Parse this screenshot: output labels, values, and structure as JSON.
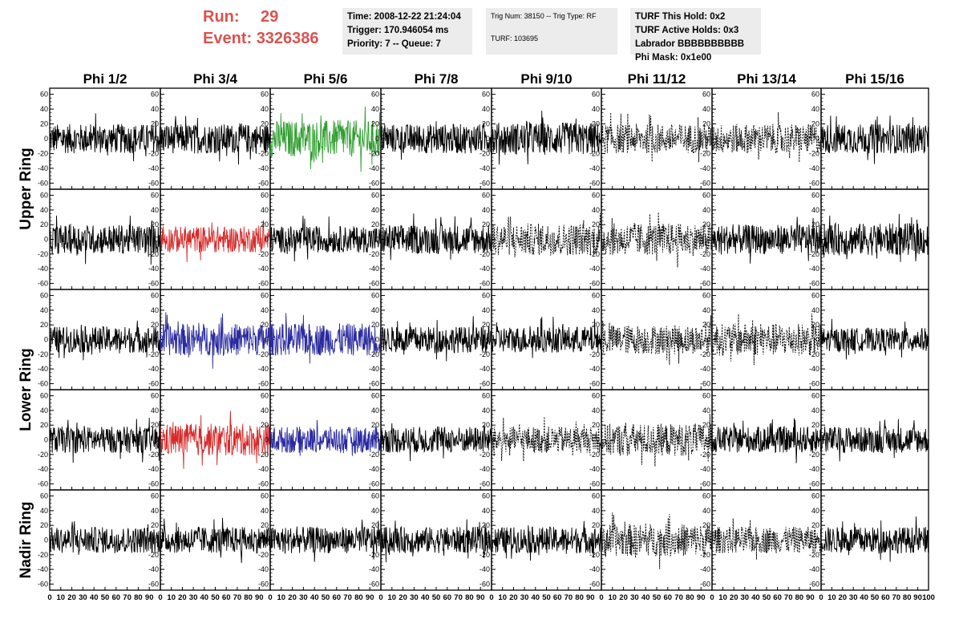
{
  "header": {
    "run_label": "Run:",
    "run_value": "29",
    "event_label": "Event:",
    "event_value": "3326386",
    "time_line": "Time: 2008-12-22 21:24:04",
    "trigger_line": "Trigger: 170.946054 ms",
    "priority_line": "Priority: 7 -- Queue: 7",
    "trig_num_line": "Trig Num: 38150 -- Trig Type: RF",
    "turf_line": "TURF: 103695",
    "turf_hold_line": "TURF This Hold: 0x2",
    "turf_active_line": "TURF Active Holds: 0x3",
    "labrador_line": "Labrador BBBBBBBBBB",
    "phi_mask_line": "Phi Mask: 0x1e00"
  },
  "chart_data": {
    "type": "line",
    "columns": [
      "Phi 1/2",
      "Phi 3/4",
      "Phi 5/6",
      "Phi 7/8",
      "Phi 9/10",
      "Phi 11/12",
      "Phi 13/14",
      "Phi 15/16"
    ],
    "ring_labels": [
      {
        "label": "Upper Ring",
        "rows": [
          0,
          1
        ]
      },
      {
        "label": "Lower Ring",
        "rows": [
          2,
          3
        ]
      },
      {
        "label": "Nadir Ring",
        "rows": [
          4
        ]
      }
    ],
    "ylim": [
      -65,
      65
    ],
    "yticks": [
      -60,
      -40,
      -20,
      0,
      20,
      40,
      60
    ],
    "xlim": [
      0,
      100
    ],
    "xtick_labels": [
      "0",
      "10",
      "20",
      "30",
      "40",
      "50",
      "60",
      "70",
      "80",
      "90",
      "100"
    ],
    "approx_amplitude": [
      [
        20,
        20,
        25,
        20,
        22,
        20,
        20,
        20
      ],
      [
        20,
        18,
        18,
        20,
        22,
        22,
        20,
        22
      ],
      [
        18,
        22,
        22,
        18,
        18,
        20,
        22,
        16
      ],
      [
        18,
        22,
        18,
        18,
        18,
        22,
        18,
        18
      ],
      [
        18,
        18,
        18,
        18,
        18,
        22,
        18,
        18
      ]
    ],
    "trace_style": [
      [
        "solid",
        "solid",
        "solid",
        "solid",
        "solid",
        "dashed",
        "dashed",
        "solid"
      ],
      [
        "solid",
        "solid",
        "solid",
        "solid",
        "dashed",
        "dashed",
        "solid",
        "solid"
      ],
      [
        "solid",
        "solid",
        "solid",
        "solid",
        "solid",
        "dashed",
        "dashed",
        "solid"
      ],
      [
        "solid",
        "solid",
        "solid",
        "solid",
        "dashed",
        "dashed",
        "solid",
        "solid"
      ],
      [
        "solid",
        "solid",
        "solid",
        "solid",
        "solid",
        "dashed",
        "dashed",
        "solid"
      ]
    ],
    "trace_color": [
      [
        "#000000",
        "#000000",
        "#2e9e2e",
        "#000000",
        "#000000",
        "#000000",
        "#000000",
        "#000000"
      ],
      [
        "#000000",
        "#d62a2a",
        "#000000",
        "#000000",
        "#000000",
        "#000000",
        "#000000",
        "#000000"
      ],
      [
        "#000000",
        "#2a2aa0",
        "#2a2aa0",
        "#000000",
        "#000000",
        "#000000",
        "#000000",
        "#000000"
      ],
      [
        "#000000",
        "#d62a2a",
        "#2a2aa0",
        "#000000",
        "#000000",
        "#000000",
        "#000000",
        "#000000"
      ],
      [
        "#000000",
        "#000000",
        "#000000",
        "#000000",
        "#000000",
        "#000000",
        "#000000",
        "#000000"
      ]
    ],
    "grid": false
  },
  "colors": {
    "run_text": "#d9534f",
    "info_box_bg": "#ececec"
  }
}
